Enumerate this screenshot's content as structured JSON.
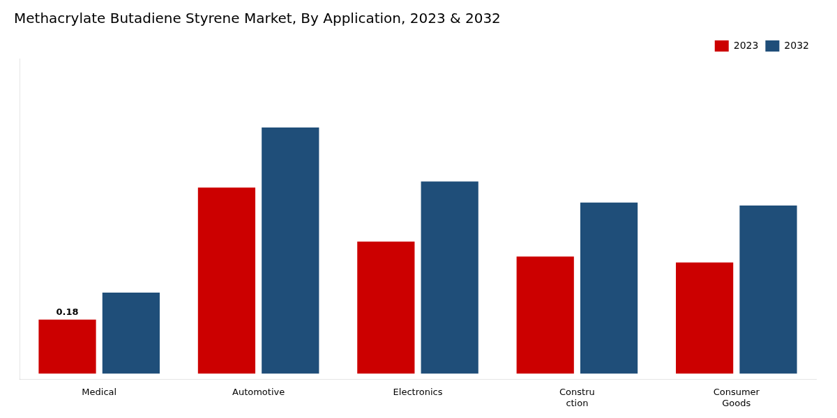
{
  "chart_data": {
    "type": "bar",
    "title": "Methacrylate Butadiene Styrene Market, By Application, 2023 & 2032",
    "categories": [
      "Medical",
      "Automotive",
      "Electronics",
      "Constru\nction",
      "Consumer\nGoods"
    ],
    "series": [
      {
        "name": "2023",
        "color": "#cc0000",
        "values": [
          0.18,
          0.62,
          0.44,
          0.39,
          0.37
        ]
      },
      {
        "name": "2032",
        "color": "#1f4e79",
        "values": [
          0.27,
          0.82,
          0.64,
          0.57,
          0.56
        ]
      }
    ],
    "annotations": [
      {
        "text": "0.18",
        "category": "Medical",
        "series": "2023",
        "value": 0.18
      }
    ],
    "ylim": [
      -0.02,
      1.05
    ],
    "tick_labels": "x",
    "grid": false,
    "legend": "top"
  }
}
